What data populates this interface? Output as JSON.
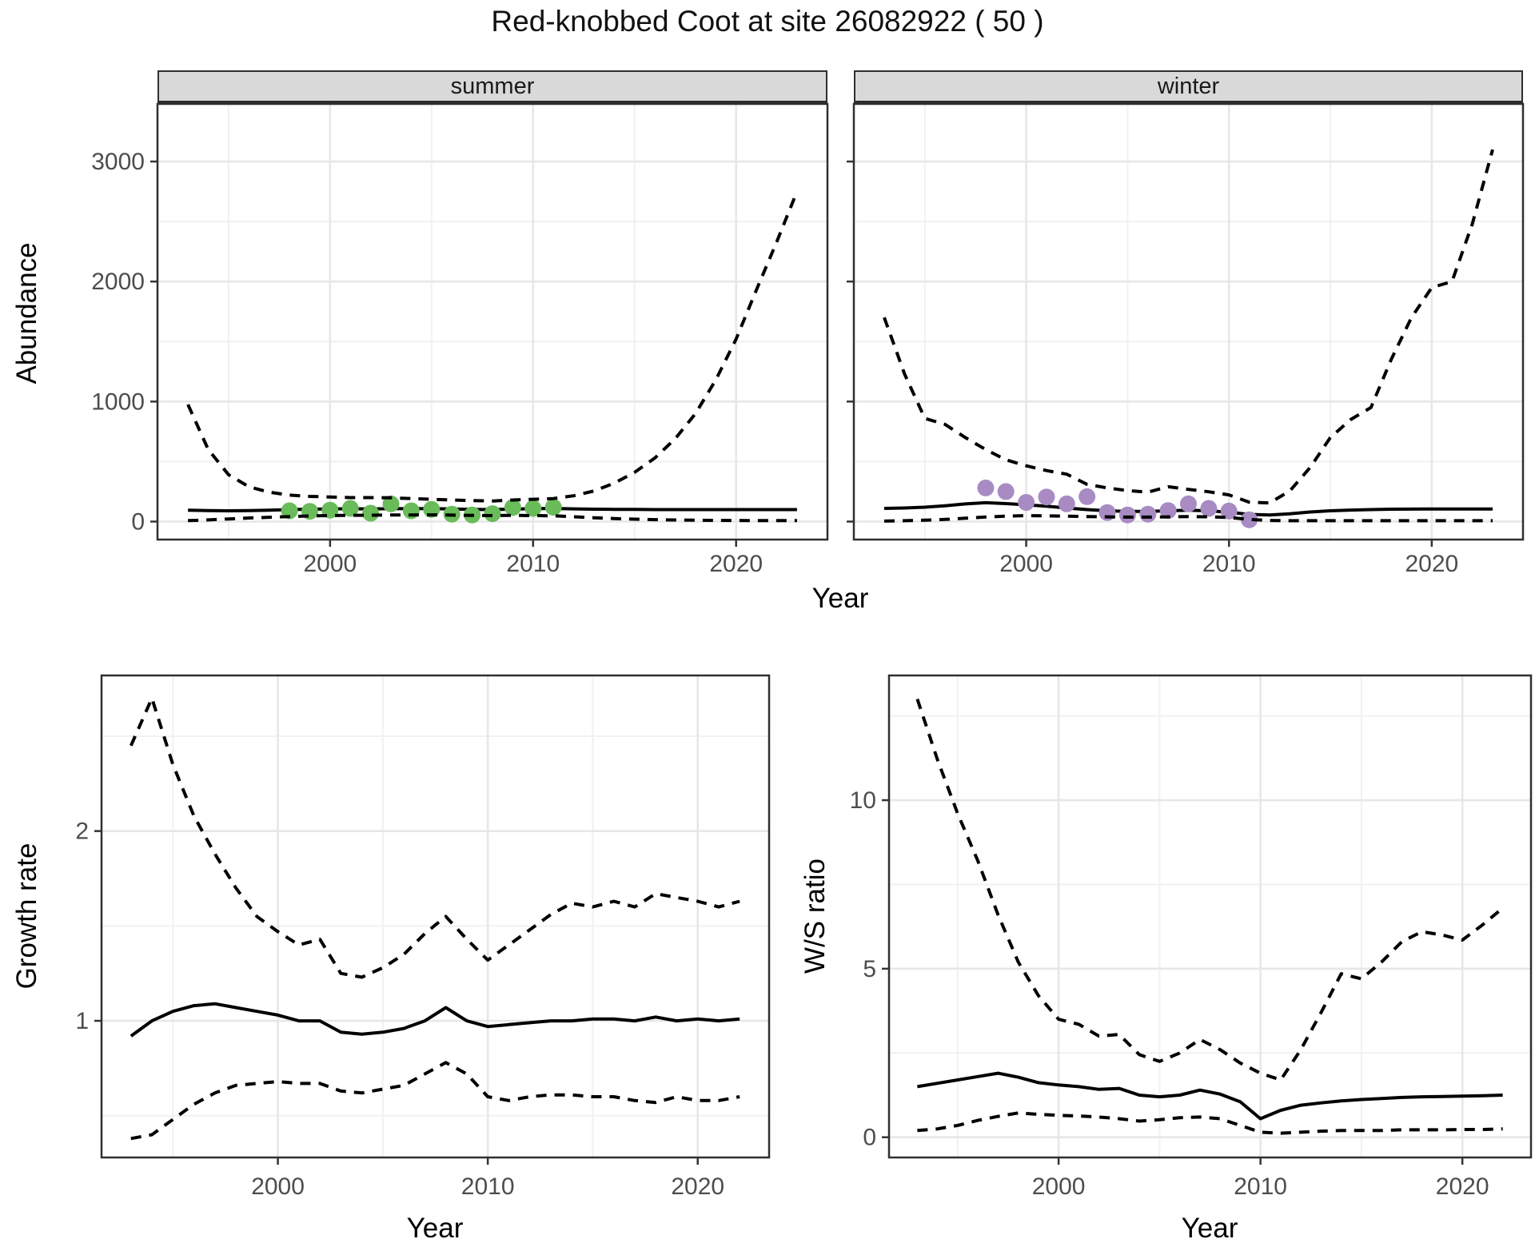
{
  "title": "Red-knobbed Coot at site 26082922 ( 50 )",
  "facets": {
    "summer": "summer",
    "winter": "winter"
  },
  "axis_labels": {
    "abundance": "Abundance",
    "year": "Year",
    "growth": "Growth rate",
    "ws": "W/S ratio"
  },
  "colors": {
    "summer_points": "#69BC59",
    "winter_points": "#A88BC3",
    "line": "#000000",
    "panel_border": "#2f2f2f",
    "strip_bg": "#d9d9d9",
    "grid_major": "#e7e7e7",
    "grid_minor": "#f1f1f1",
    "tick_text": "#4d4d4d"
  },
  "chart_data": [
    {
      "id": "abundance_summer",
      "type": "line",
      "facet_label": "summer",
      "ylabel": "Abundance",
      "xlabel": "Year",
      "legend_position": "none",
      "grid": true,
      "xlim": [
        1991.5,
        2024.5
      ],
      "ylim": [
        -150,
        3480
      ],
      "x_ticks": [
        2000,
        2010,
        2020
      ],
      "x_minor": [
        1995,
        2005,
        2015
      ],
      "y_ticks": [
        0,
        1000,
        2000,
        3000
      ],
      "y_minor": [
        500,
        1500,
        2500
      ],
      "show_y_tick_labels": true,
      "years": [
        1993,
        1994,
        1995,
        1996,
        1997,
        1998,
        1999,
        2000,
        2001,
        2002,
        2003,
        2004,
        2005,
        2006,
        2007,
        2008,
        2009,
        2010,
        2011,
        2012,
        2013,
        2014,
        2015,
        2016,
        2017,
        2018,
        2019,
        2020,
        2021,
        2022,
        2023
      ],
      "series": [
        {
          "name": "median",
          "style": "solid",
          "values": [
            95,
            92,
            90,
            92,
            95,
            100,
            103,
            105,
            107,
            105,
            108,
            107,
            108,
            105,
            102,
            100,
            104,
            107,
            110,
            106,
            103,
            102,
            101,
            100,
            100,
            100,
            100,
            100,
            100,
            100,
            100
          ]
        },
        {
          "name": "upper_ci",
          "style": "dashed",
          "values": [
            975,
            600,
            390,
            290,
            245,
            220,
            210,
            205,
            200,
            200,
            198,
            192,
            186,
            180,
            175,
            172,
            180,
            186,
            192,
            215,
            255,
            320,
            410,
            530,
            690,
            900,
            1180,
            1520,
            1930,
            2330,
            2750
          ]
        },
        {
          "name": "lower_ci",
          "style": "dashed",
          "values": [
            8,
            14,
            22,
            30,
            36,
            42,
            47,
            50,
            52,
            53,
            55,
            55,
            56,
            54,
            52,
            50,
            52,
            50,
            48,
            40,
            32,
            25,
            20,
            16,
            13,
            11,
            10,
            9,
            8,
            8,
            8
          ]
        }
      ],
      "points": {
        "name": "summer-observed-counts",
        "color": "#69BC59",
        "years": [
          1998,
          1999,
          2000,
          2001,
          2002,
          2003,
          2004,
          2005,
          2006,
          2007,
          2008,
          2009,
          2010,
          2011
        ],
        "values": [
          90,
          85,
          95,
          110,
          70,
          148,
          90,
          102,
          62,
          55,
          66,
          118,
          110,
          120
        ]
      }
    },
    {
      "id": "abundance_winter",
      "type": "line",
      "facet_label": "winter",
      "ylabel": "Abundance",
      "xlabel": "Year",
      "legend_position": "none",
      "grid": true,
      "xlim": [
        1991.5,
        2024.5
      ],
      "ylim": [
        -150,
        3480
      ],
      "x_ticks": [
        2000,
        2010,
        2020
      ],
      "x_minor": [
        1995,
        2005,
        2015
      ],
      "y_ticks": [
        0,
        1000,
        2000,
        3000
      ],
      "y_minor": [
        500,
        1500,
        2500
      ],
      "show_y_tick_labels": false,
      "years": [
        1993,
        1994,
        1995,
        1996,
        1997,
        1998,
        1999,
        2000,
        2001,
        2002,
        2003,
        2004,
        2005,
        2006,
        2007,
        2008,
        2009,
        2010,
        2011,
        2012,
        2013,
        2014,
        2015,
        2016,
        2017,
        2018,
        2019,
        2020,
        2021,
        2022,
        2023
      ],
      "series": [
        {
          "name": "median",
          "style": "solid",
          "values": [
            110,
            113,
            120,
            132,
            147,
            157,
            150,
            140,
            128,
            113,
            100,
            90,
            85,
            85,
            90,
            95,
            90,
            78,
            60,
            55,
            65,
            80,
            90,
            96,
            100,
            103,
            104,
            105,
            105,
            105,
            105
          ]
        },
        {
          "name": "upper_ci",
          "style": "dashed",
          "values": [
            1700,
            1230,
            860,
            810,
            700,
            600,
            515,
            465,
            425,
            395,
            310,
            280,
            258,
            245,
            290,
            268,
            248,
            222,
            162,
            155,
            255,
            450,
            700,
            850,
            950,
            1350,
            1700,
            1950,
            2000,
            2480,
            3100
          ]
        },
        {
          "name": "lower_ci",
          "style": "dashed",
          "values": [
            4,
            7,
            11,
            18,
            28,
            38,
            45,
            50,
            48,
            45,
            42,
            39,
            37,
            37,
            39,
            42,
            40,
            34,
            18,
            9,
            7,
            7,
            7,
            7,
            7,
            7,
            7,
            7,
            7,
            7,
            7
          ]
        }
      ],
      "points": {
        "name": "winter-observed-counts",
        "color": "#A88BC3",
        "years": [
          1998,
          1999,
          2000,
          2001,
          2002,
          2003,
          2004,
          2005,
          2006,
          2007,
          2008,
          2009,
          2010,
          2011
        ],
        "values": [
          280,
          250,
          160,
          205,
          148,
          208,
          75,
          55,
          62,
          92,
          148,
          110,
          88,
          15
        ]
      }
    },
    {
      "id": "growth_rate",
      "type": "line",
      "facet_label": "",
      "ylabel": "Growth rate",
      "xlabel": "Year",
      "legend_position": "none",
      "grid": true,
      "xlim": [
        1991.6,
        2023.4
      ],
      "ylim": [
        0.28,
        2.82
      ],
      "x_ticks": [
        2000,
        2010,
        2020
      ],
      "x_minor": [
        1995,
        2005,
        2015
      ],
      "y_ticks": [
        1,
        2
      ],
      "y_minor": [
        0.5,
        1.5,
        2.5
      ],
      "show_y_tick_labels": true,
      "years": [
        1993,
        1994,
        1995,
        1996,
        1997,
        1998,
        1999,
        2000,
        2001,
        2002,
        2003,
        2004,
        2005,
        2006,
        2007,
        2008,
        2009,
        2010,
        2011,
        2012,
        2013,
        2014,
        2015,
        2016,
        2017,
        2018,
        2019,
        2020,
        2021,
        2022
      ],
      "series": [
        {
          "name": "median",
          "style": "solid",
          "values": [
            0.92,
            1.0,
            1.05,
            1.08,
            1.09,
            1.07,
            1.05,
            1.03,
            1.0,
            1.0,
            0.94,
            0.93,
            0.94,
            0.96,
            1.0,
            1.07,
            1.0,
            0.97,
            0.98,
            0.99,
            1.0,
            1.0,
            1.01,
            1.01,
            1.0,
            1.02,
            1.0,
            1.01,
            1.0,
            1.01
          ]
        },
        {
          "name": "upper_ci",
          "style": "dashed",
          "values": [
            2.45,
            2.7,
            2.35,
            2.08,
            1.88,
            1.7,
            1.55,
            1.47,
            1.4,
            1.43,
            1.25,
            1.23,
            1.28,
            1.35,
            1.46,
            1.55,
            1.43,
            1.32,
            1.4,
            1.48,
            1.56,
            1.62,
            1.6,
            1.63,
            1.6,
            1.67,
            1.65,
            1.63,
            1.6,
            1.63
          ]
        },
        {
          "name": "lower_ci",
          "style": "dashed",
          "values": [
            0.38,
            0.4,
            0.48,
            0.56,
            0.62,
            0.66,
            0.67,
            0.68,
            0.67,
            0.67,
            0.63,
            0.62,
            0.64,
            0.66,
            0.72,
            0.78,
            0.72,
            0.6,
            0.58,
            0.6,
            0.61,
            0.61,
            0.6,
            0.6,
            0.58,
            0.57,
            0.6,
            0.58,
            0.58,
            0.6
          ]
        }
      ]
    },
    {
      "id": "ws_ratio",
      "type": "line",
      "facet_label": "",
      "ylabel": "W/S ratio",
      "xlabel": "Year",
      "legend_position": "none",
      "grid": true,
      "xlim": [
        1991.6,
        2023.4
      ],
      "ylim": [
        -0.6,
        13.7
      ],
      "x_ticks": [
        2000,
        2010,
        2020
      ],
      "x_minor": [
        1995,
        2005,
        2015
      ],
      "y_ticks": [
        0,
        5,
        10
      ],
      "y_minor": [
        2.5,
        7.5,
        12.5
      ],
      "show_y_tick_labels": true,
      "years": [
        1993,
        1994,
        1995,
        1996,
        1997,
        1998,
        1999,
        2000,
        2001,
        2002,
        2003,
        2004,
        2005,
        2006,
        2007,
        2008,
        2009,
        2010,
        2011,
        2012,
        2013,
        2014,
        2015,
        2016,
        2017,
        2018,
        2019,
        2020,
        2021,
        2022
      ],
      "series": [
        {
          "name": "median",
          "style": "solid",
          "values": [
            1.5,
            1.6,
            1.7,
            1.8,
            1.9,
            1.78,
            1.62,
            1.55,
            1.5,
            1.42,
            1.45,
            1.25,
            1.2,
            1.25,
            1.4,
            1.28,
            1.05,
            0.55,
            0.8,
            0.95,
            1.02,
            1.08,
            1.12,
            1.15,
            1.18,
            1.2,
            1.21,
            1.22,
            1.23,
            1.25
          ]
        },
        {
          "name": "upper_ci",
          "style": "dashed",
          "values": [
            13.0,
            11.2,
            9.6,
            8.2,
            6.6,
            5.2,
            4.2,
            3.5,
            3.35,
            3.0,
            3.05,
            2.45,
            2.25,
            2.5,
            2.9,
            2.6,
            2.2,
            1.9,
            1.7,
            2.6,
            3.7,
            4.85,
            4.7,
            5.2,
            5.8,
            6.1,
            6.0,
            5.85,
            6.3,
            6.8
          ]
        },
        {
          "name": "lower_ci",
          "style": "dashed",
          "values": [
            0.2,
            0.25,
            0.35,
            0.5,
            0.62,
            0.72,
            0.68,
            0.65,
            0.63,
            0.6,
            0.55,
            0.48,
            0.52,
            0.58,
            0.6,
            0.55,
            0.35,
            0.15,
            0.12,
            0.15,
            0.18,
            0.2,
            0.2,
            0.2,
            0.22,
            0.22,
            0.22,
            0.23,
            0.23,
            0.25
          ]
        }
      ]
    }
  ]
}
